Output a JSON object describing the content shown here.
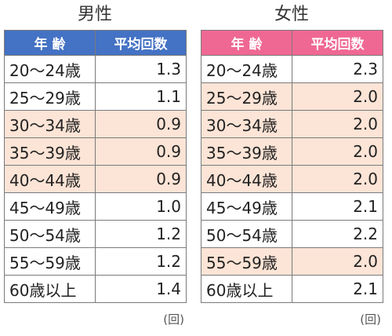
{
  "male": {
    "title": "男性",
    "headers": {
      "age": "年 齢",
      "value": "平均回数"
    },
    "rows": [
      {
        "age": "20～24歳",
        "value": "1.3",
        "highlight": false
      },
      {
        "age": "25～29歳",
        "value": "1.1",
        "highlight": false
      },
      {
        "age": "30～34歳",
        "value": "0.9",
        "highlight": true
      },
      {
        "age": "35～39歳",
        "value": "0.9",
        "highlight": true
      },
      {
        "age": "40～44歳",
        "value": "0.9",
        "highlight": true
      },
      {
        "age": "45～49歳",
        "value": "1.0",
        "highlight": false
      },
      {
        "age": "50～54歳",
        "value": "1.2",
        "highlight": false
      },
      {
        "age": "55～59歳",
        "value": "1.2",
        "highlight": false
      },
      {
        "age": "60歳以上",
        "value": "1.4",
        "highlight": false
      }
    ],
    "unit": "(回)"
  },
  "female": {
    "title": "女性",
    "headers": {
      "age": "年 齢",
      "value": "平均回数"
    },
    "rows": [
      {
        "age": "20～24歳",
        "value": "2.3",
        "highlight": false
      },
      {
        "age": "25～29歳",
        "value": "2.0",
        "highlight": true
      },
      {
        "age": "30～34歳",
        "value": "2.0",
        "highlight": true
      },
      {
        "age": "35～39歳",
        "value": "2.0",
        "highlight": true
      },
      {
        "age": "40～44歳",
        "value": "2.0",
        "highlight": true
      },
      {
        "age": "45～49歳",
        "value": "2.1",
        "highlight": false
      },
      {
        "age": "50～54歳",
        "value": "2.2",
        "highlight": false
      },
      {
        "age": "55～59歳",
        "value": "2.0",
        "highlight": true
      },
      {
        "age": "60歳以上",
        "value": "2.1",
        "highlight": false
      }
    ],
    "unit": "(回)"
  },
  "colors": {
    "male_header": "#4472c4",
    "female_header": "#ef6894",
    "highlight": "#fce4d6"
  }
}
